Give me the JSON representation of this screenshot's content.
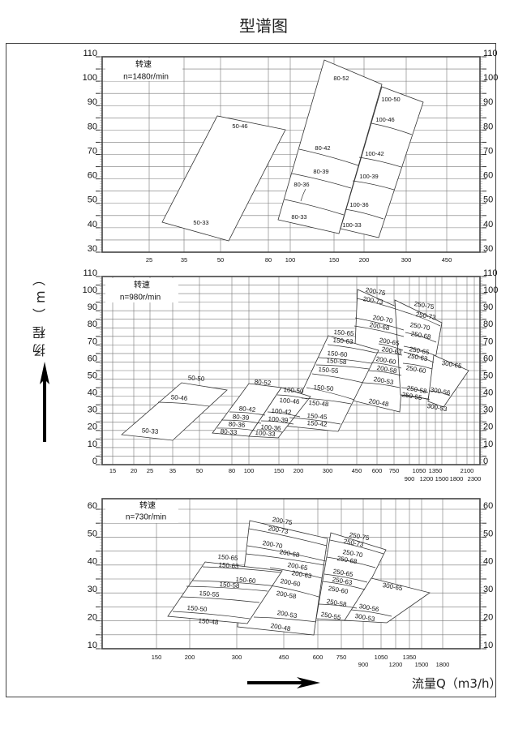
{
  "title": "型谱图",
  "chart_data": {
    "type": "table",
    "xlabel": "流量Q（m3/h）",
    "ylabel": "扬程（m）",
    "grid": true,
    "panels": [
      {
        "speed_label": "转速",
        "speed": "n=1480r/min",
        "ylim": [
          30,
          110
        ],
        "yticks": [
          "30",
          "40",
          "50",
          "60",
          "70",
          "80",
          "90",
          "100",
          "110"
        ],
        "xticks": [
          "25",
          "35",
          "50",
          "80",
          "100",
          "150",
          "200",
          "300",
          "450"
        ],
        "xticks_row2": [],
        "models": [
          "50-46",
          "50-33",
          "80-52",
          "80-42",
          "80-39",
          "80-36",
          "80-33",
          "100-50",
          "100-46",
          "100-42",
          "100-39",
          "100-36",
          "100-33"
        ]
      },
      {
        "speed_label": "转速",
        "speed": "n=980r/min",
        "ylim": [
          0,
          110
        ],
        "yticks": [
          "0",
          "10",
          "20",
          "30",
          "40",
          "50",
          "60",
          "70",
          "80",
          "90",
          "100",
          "110"
        ],
        "xticks": [
          "15",
          "20",
          "25",
          "35",
          "50",
          "80",
          "100",
          "150",
          "200",
          "300",
          "450",
          "600",
          "750",
          "1050",
          "1350",
          "2100"
        ],
        "xticks_row2": [
          "900",
          "1200",
          "1500",
          "1800",
          "2300"
        ],
        "models": [
          "50-50",
          "50-46",
          "50-33",
          "80-52",
          "80-42",
          "80-39",
          "80-36",
          "80-33",
          "100-50",
          "100-46",
          "100-42",
          "100-39",
          "100-36",
          "100-33",
          "150-65",
          "150-63",
          "150-60",
          "150-58",
          "150-55",
          "150-50",
          "150-48",
          "150-45",
          "150-42",
          "200-75",
          "200-73",
          "200-70",
          "200-68",
          "200-65",
          "200-63",
          "200-60",
          "200-58",
          "200-53",
          "200-48",
          "250-75",
          "250-73",
          "250-70",
          "250-68",
          "250-65",
          "250-63",
          "250-60",
          "250-58",
          "250-55",
          "300-65",
          "300-56",
          "300-53"
        ]
      },
      {
        "speed_label": "转速",
        "speed": "n=730r/min",
        "ylim": [
          10,
          60
        ],
        "yticks": [
          "10",
          "20",
          "30",
          "40",
          "50",
          "60"
        ],
        "xticks": [
          "150",
          "200",
          "300",
          "450",
          "600",
          "750",
          "1050",
          "1350"
        ],
        "xticks_row2": [
          "900",
          "1200",
          "1500",
          "1800"
        ],
        "models": [
          "150-65",
          "150-63",
          "150-60",
          "150-58",
          "150-55",
          "150-50",
          "150-48",
          "200-75",
          "200-73",
          "200-70",
          "200-68",
          "200-65",
          "200-63",
          "200-60",
          "200-58",
          "200-53",
          "200-48",
          "250-75",
          "250-73",
          "250-70",
          "250-68",
          "250-65",
          "250-63",
          "250-60",
          "250-58",
          "250-55",
          "300-65",
          "300-56",
          "300-53"
        ]
      }
    ]
  }
}
